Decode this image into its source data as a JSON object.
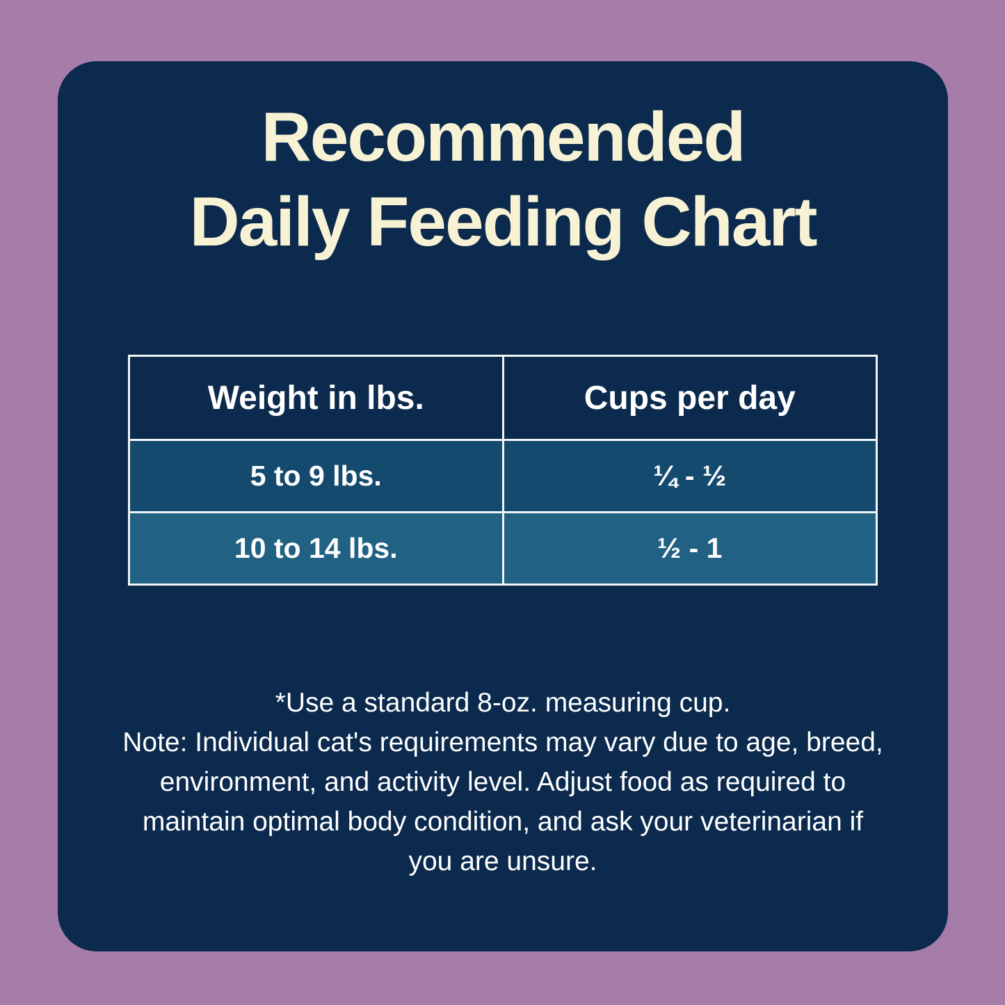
{
  "title": {
    "line1": "Recommended",
    "line2": "Daily Feeding Chart"
  },
  "table": {
    "headers": [
      "Weight in lbs.",
      "Cups per day"
    ],
    "rows": [
      {
        "weight": "5 to 9 lbs.",
        "cups": "¼ - ½"
      },
      {
        "weight": "10 to 14 lbs.",
        "cups": "½ - 1"
      }
    ]
  },
  "note": {
    "lines": [
      "*Use a standard 8-oz. measuring cup.",
      "Note: Individual cat's requirements may vary due to age, breed,",
      "environment, and activity level. Adjust food as required to",
      "maintain optimal body condition, and ask your veterinarian if",
      "you are unsure."
    ]
  },
  "colors": {
    "background": "#a67da9",
    "card": "#0b2a4d",
    "row_1": "#154a6f",
    "row_2": "#206184",
    "title_text": "#f8f2d5",
    "table_border": "#f2f5f6",
    "body_text": "#ffffff"
  },
  "chart_data": {
    "type": "table",
    "title": "Recommended Daily Feeding Chart",
    "columns": [
      "Weight in lbs.",
      "Cups per day"
    ],
    "rows": [
      [
        "5 to 9 lbs.",
        "¼ - ½"
      ],
      [
        "10 to 14 lbs.",
        "½ - 1"
      ]
    ],
    "footnotes": [
      "*Use a standard 8-oz. measuring cup.",
      "Note: Individual cat's requirements may vary due to age, breed, environment, and activity level. Adjust food as required to maintain optimal body condition, and ask your veterinarian if you are unsure."
    ],
    "legend_position": "none",
    "grid": true
  }
}
